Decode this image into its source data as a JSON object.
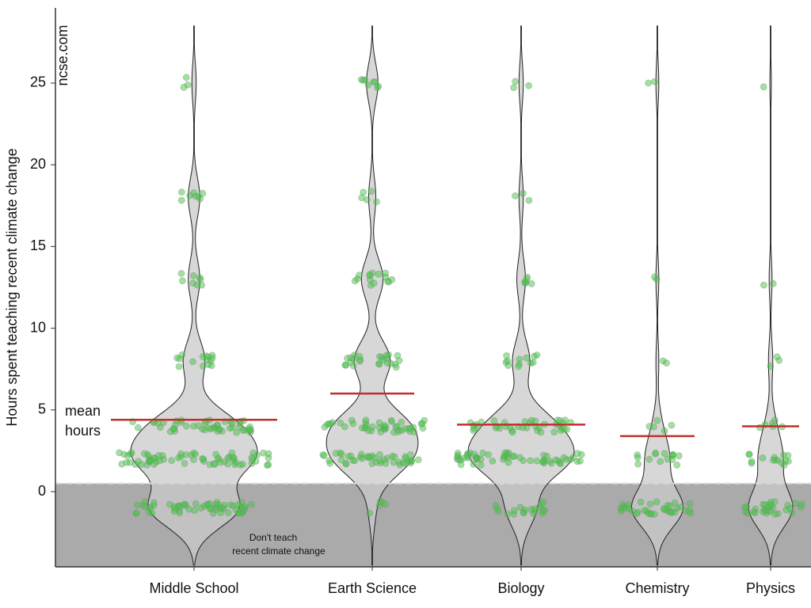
{
  "chart_data": {
    "type": "violin",
    "y_label": "Hours spent teaching recent climate change",
    "annotations": {
      "source": "ncse.com",
      "mean_label": [
        "mean",
        "hours"
      ],
      "shaded_label": [
        "Don't teach",
        "recent climate change"
      ]
    },
    "categories": [
      "Middle School",
      "Earth Science",
      "Biology",
      "Chemistry",
      "Physics"
    ],
    "means": [
      4.4,
      6.0,
      4.1,
      3.4,
      4.0
    ],
    "levels": [
      -1,
      2,
      4,
      8,
      13,
      18,
      25
    ],
    "counts": [
      [
        60,
        70,
        50,
        15,
        8,
        8,
        3
      ],
      [
        5,
        45,
        45,
        25,
        15,
        5,
        8
      ],
      [
        20,
        60,
        40,
        12,
        6,
        3,
        3
      ],
      [
        35,
        15,
        5,
        2,
        2,
        0,
        2
      ],
      [
        30,
        15,
        6,
        3,
        2,
        0,
        1
      ]
    ],
    "shaded_below": 0.5,
    "ylim": [
      -4.6,
      29.6
    ],
    "yticks": [
      0,
      5,
      10,
      15,
      20,
      25
    ],
    "colors": {
      "points": "#3ec93e",
      "mean": "#c0302a",
      "violin": "#c9c9c9",
      "shade": "#aaaaaa"
    }
  }
}
